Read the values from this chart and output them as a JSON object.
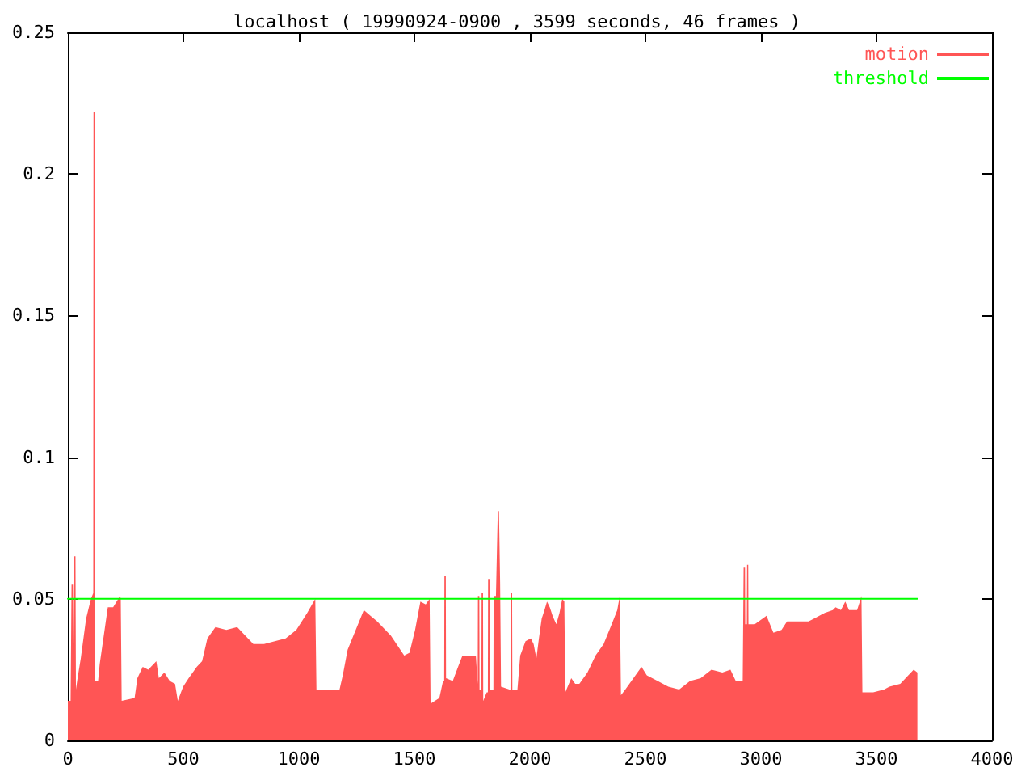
{
  "chart_data": {
    "type": "area",
    "title": "localhost ( 19990924-0900 , 3599 seconds, 46 frames )",
    "xlim": [
      0,
      4000
    ],
    "xticks": [
      0,
      500,
      1000,
      1500,
      2000,
      2500,
      3000,
      3500,
      4000
    ],
    "ylim": [
      0,
      0.25
    ],
    "yticks": [
      0,
      0.05,
      0.1,
      0.15,
      0.2,
      0.25
    ],
    "grid": false,
    "legend": "top right",
    "marker": "none",
    "series": [
      {
        "name": "motion",
        "color": "#ff5555",
        "x": [
          0,
          12,
          16,
          22,
          26,
          28,
          33,
          35,
          44,
          56,
          79,
          100,
          110,
          111,
          117,
          118,
          131,
          138,
          173,
          196,
          226,
          229,
          233,
          289,
          301,
          324,
          348,
          383,
          394,
          418,
          441,
          464,
          476,
          499,
          523,
          558,
          581,
          604,
          639,
          686,
          733,
          756,
          803,
          849,
          896,
          943,
          989,
          1036,
          1071,
          1076,
          1176,
          1190,
          1211,
          1281,
          1339,
          1398,
          1456,
          1479,
          1503,
          1526,
          1549,
          1566,
          1570,
          1608,
          1624,
          1629,
          1630,
          1636,
          1637,
          1666,
          1689,
          1708,
          1766,
          1774,
          1775,
          1781,
          1782,
          1790,
          1791,
          1797,
          1798,
          1813,
          1818,
          1819,
          1825,
          1826,
          1834,
          1842,
          1843,
          1853,
          1857,
          1861,
          1866,
          1871,
          1874,
          1875,
          1911,
          1916,
          1917,
          1923,
          1924,
          1946,
          1958,
          1981,
          2004,
          2016,
          2028,
          2039,
          2051,
          2063,
          2074,
          2086,
          2098,
          2114,
          2128,
          2140,
          2149,
          2153,
          2179,
          2196,
          2214,
          2249,
          2284,
          2319,
          2354,
          2378,
          2389,
          2394,
          2413,
          2448,
          2483,
          2506,
          2553,
          2599,
          2646,
          2693,
          2739,
          2786,
          2833,
          2868,
          2891,
          2921,
          2924,
          2925,
          2931,
          2932,
          2939,
          2940,
          2945,
          2946,
          2973,
          3024,
          3054,
          3089,
          3113,
          3159,
          3206,
          3276,
          3311,
          3323,
          3346,
          3365,
          3381,
          3416,
          3428,
          3435,
          3439,
          3486,
          3533,
          3556,
          3603,
          3626,
          3661,
          3677
        ],
        "values": [
          0.014,
          0.014,
          0.055,
          0.055,
          0.02,
          0.065,
          0.065,
          0.018,
          0.023,
          0.029,
          0.043,
          0.05,
          0.052,
          0.222,
          0.222,
          0.021,
          0.021,
          0.027,
          0.047,
          0.047,
          0.051,
          0.05,
          0.014,
          0.015,
          0.022,
          0.026,
          0.025,
          0.028,
          0.022,
          0.024,
          0.021,
          0.02,
          0.014,
          0.019,
          0.022,
          0.026,
          0.028,
          0.036,
          0.04,
          0.039,
          0.04,
          0.038,
          0.034,
          0.034,
          0.035,
          0.036,
          0.039,
          0.045,
          0.05,
          0.018,
          0.018,
          0.023,
          0.032,
          0.046,
          0.042,
          0.037,
          0.03,
          0.031,
          0.039,
          0.049,
          0.048,
          0.05,
          0.013,
          0.015,
          0.021,
          0.021,
          0.058,
          0.058,
          0.022,
          0.021,
          0.026,
          0.03,
          0.03,
          0.02,
          0.051,
          0.051,
          0.018,
          0.018,
          0.052,
          0.052,
          0.014,
          0.017,
          0.017,
          0.057,
          0.057,
          0.018,
          0.018,
          0.018,
          0.051,
          0.051,
          0.066,
          0.081,
          0.081,
          0.056,
          0.056,
          0.019,
          0.018,
          0.018,
          0.052,
          0.052,
          0.018,
          0.018,
          0.03,
          0.035,
          0.036,
          0.034,
          0.029,
          0.036,
          0.043,
          0.046,
          0.049,
          0.047,
          0.044,
          0.041,
          0.045,
          0.05,
          0.049,
          0.017,
          0.022,
          0.02,
          0.02,
          0.024,
          0.03,
          0.034,
          0.041,
          0.046,
          0.051,
          0.016,
          0.018,
          0.022,
          0.026,
          0.023,
          0.021,
          0.019,
          0.018,
          0.021,
          0.022,
          0.025,
          0.024,
          0.025,
          0.021,
          0.021,
          0.021,
          0.061,
          0.061,
          0.041,
          0.041,
          0.062,
          0.062,
          0.041,
          0.041,
          0.044,
          0.038,
          0.039,
          0.042,
          0.042,
          0.042,
          0.045,
          0.046,
          0.047,
          0.046,
          0.049,
          0.046,
          0.046,
          0.049,
          0.051,
          0.017,
          0.017,
          0.018,
          0.019,
          0.02,
          0.022,
          0.025,
          0.024
        ]
      },
      {
        "name": "threshold",
        "type": "line",
        "color": "#00ff00",
        "x": [
          0,
          3677
        ],
        "values": [
          0.05,
          0.05
        ]
      }
    ]
  }
}
